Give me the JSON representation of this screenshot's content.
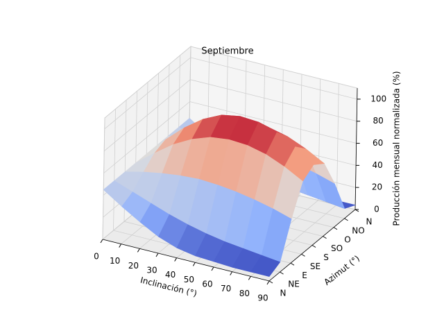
{
  "chart_data": {
    "type": "surface",
    "title": "Septiembre",
    "xlabel": "Inclinación (°)",
    "ylabel": "Azimut (°)",
    "zlabel": "Producción mensual normalizada (%)",
    "x": [
      0,
      10,
      20,
      30,
      40,
      50,
      60,
      70,
      80,
      90
    ],
    "categories": [
      "N",
      "NE",
      "E",
      "SE",
      "S",
      "SO",
      "O",
      "NO",
      "N"
    ],
    "z": [
      [
        45,
        34,
        24,
        15,
        9,
        6,
        5,
        4,
        4,
        4
      ],
      [
        45,
        39,
        33,
        27,
        22,
        18,
        15,
        13,
        11,
        9
      ],
      [
        45,
        49,
        52,
        54,
        55,
        54,
        52,
        49,
        45,
        40
      ],
      [
        45,
        58,
        70,
        79,
        85,
        87,
        86,
        82,
        75,
        66
      ],
      [
        45,
        62,
        77,
        89,
        97,
        100,
        99,
        94,
        85,
        73
      ],
      [
        45,
        58,
        70,
        79,
        85,
        87,
        86,
        82,
        75,
        66
      ],
      [
        45,
        49,
        52,
        54,
        55,
        54,
        52,
        49,
        45,
        40
      ],
      [
        45,
        39,
        33,
        27,
        22,
        18,
        15,
        13,
        11,
        9
      ],
      [
        45,
        34,
        24,
        15,
        9,
        6,
        5,
        4,
        4,
        4
      ]
    ],
    "xlim": [
      0,
      90
    ],
    "xticks": [
      0,
      10,
      20,
      30,
      40,
      50,
      60,
      70,
      80,
      90
    ],
    "zlim": [
      0,
      110
    ],
    "zticks": [
      0,
      20,
      40,
      60,
      80,
      100
    ],
    "colormap": "coolwarm",
    "grid": true
  }
}
